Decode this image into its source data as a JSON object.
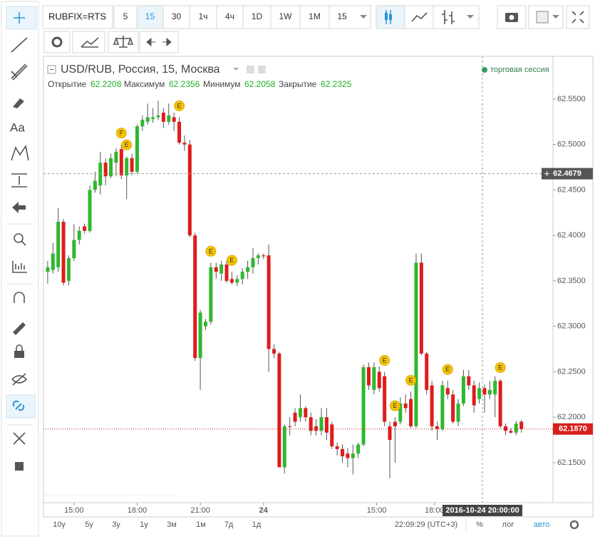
{
  "toolbar": {
    "symbol": "RUBFIX=RTS",
    "intervals": [
      "5",
      "15",
      "30",
      "1ч",
      "4ч",
      "1D",
      "1W",
      "1M"
    ],
    "selected_interval": 1,
    "interval_select": "15",
    "text_tool": "Aa"
  },
  "legend": {
    "title": "USD/RUB, Россия, 15, Москва",
    "session": "торговая сессия",
    "fields": [
      {
        "label": "Открытие",
        "value": 62.2208
      },
      {
        "label": "Максимум",
        "value": 62.2356
      },
      {
        "label": "Минимум",
        "value": 62.2058
      },
      {
        "label": "Закрытие",
        "value": 62.2325
      }
    ]
  },
  "chart_data": {
    "type": "candlestick",
    "up_color": "#2eb82e",
    "down_color": "#e01b1b",
    "open": [
      62.36,
      62.362,
      62.365,
      62.415,
      62.35,
      62.375,
      62.395,
      62.41,
      62.405,
      62.45,
      62.455,
      62.48,
      62.465,
      62.48,
      62.495,
      62.466,
      62.485,
      62.47,
      62.52,
      62.525,
      62.528,
      62.53,
      62.535,
      62.525,
      62.53,
      62.525,
      62.502,
      62.5,
      62.4,
      62.265,
      62.3,
      62.305,
      62.365,
      62.358,
      62.368,
      62.352,
      62.348,
      62.352,
      62.36,
      62.365,
      62.375,
      62.378,
      62.378,
      62.275,
      62.27,
      62.145,
      62.19,
      62.205,
      62.2,
      62.21,
      62.2,
      62.19,
      62.185,
      62.2,
      62.192,
      62.168,
      62.165,
      62.16,
      62.155,
      62.16,
      62.17,
      62.255,
      62.23,
      62.25,
      62.245,
      62.19,
      62.195,
      62.195,
      62.215,
      62.22,
      62.19,
      62.37,
      62.27,
      62.235,
      62.19,
      62.187,
      62.232,
      62.225,
      62.195,
      62.215,
      62.245,
      62.235,
      62.22,
      62.232,
      62.225,
      62.225,
      62.24,
      62.19,
      62.185,
      62.183,
      62.195
    ],
    "high": [
      62.372,
      62.392,
      62.43,
      62.418,
      62.378,
      62.412,
      62.41,
      62.413,
      62.455,
      62.47,
      62.492,
      62.485,
      62.49,
      62.496,
      62.5,
      62.487,
      62.49,
      62.522,
      62.532,
      62.545,
      62.54,
      62.548,
      62.54,
      62.545,
      62.535,
      62.53,
      62.51,
      62.505,
      62.403,
      62.318,
      62.308,
      62.37,
      62.37,
      62.372,
      62.372,
      62.36,
      62.356,
      62.364,
      62.372,
      62.386,
      62.38,
      62.38,
      62.39,
      62.28,
      62.272,
      62.192,
      62.2,
      62.21,
      62.225,
      62.212,
      62.205,
      62.198,
      62.21,
      62.21,
      62.195,
      62.172,
      62.17,
      62.166,
      62.17,
      62.172,
      62.258,
      62.26,
      62.26,
      62.256,
      62.25,
      62.195,
      62.2,
      62.222,
      62.225,
      62.228,
      62.38,
      62.38,
      62.272,
      62.24,
      62.195,
      62.24,
      62.24,
      62.23,
      62.22,
      62.252,
      62.252,
      62.24,
      62.238,
      62.236,
      62.24,
      62.245,
      62.242,
      62.193,
      62.188,
      62.196,
      62.197
    ],
    "low": [
      62.347,
      62.358,
      62.36,
      62.345,
      62.345,
      62.372,
      62.39,
      62.402,
      62.403,
      62.447,
      62.445,
      62.455,
      62.463,
      62.465,
      62.462,
      62.44,
      62.466,
      62.468,
      62.515,
      62.522,
      62.524,
      62.527,
      62.518,
      62.522,
      62.515,
      62.5,
      62.493,
      62.398,
      62.262,
      62.23,
      62.296,
      62.302,
      62.352,
      62.35,
      62.348,
      62.346,
      62.344,
      62.346,
      62.352,
      62.358,
      62.368,
      62.374,
      62.25,
      62.265,
      62.145,
      62.138,
      62.18,
      62.19,
      62.195,
      62.195,
      62.18,
      62.18,
      62.18,
      62.175,
      62.165,
      62.158,
      62.15,
      62.145,
      62.137,
      62.155,
      62.168,
      62.23,
      62.225,
      62.228,
      62.19,
      62.133,
      62.15,
      62.192,
      62.205,
      62.188,
      62.188,
      62.268,
      62.225,
      62.185,
      62.175,
      62.185,
      62.22,
      62.193,
      62.19,
      62.212,
      62.23,
      62.205,
      62.215,
      62.205,
      62.22,
      62.2,
      62.188,
      62.18,
      62.182,
      62.18,
      62.183
    ],
    "close": [
      62.365,
      62.38,
      62.415,
      62.348,
      62.375,
      62.395,
      62.405,
      62.405,
      62.45,
      62.46,
      62.48,
      62.465,
      62.485,
      62.492,
      62.466,
      62.485,
      62.47,
      62.52,
      62.527,
      62.53,
      62.53,
      62.532,
      62.525,
      62.532,
      62.525,
      62.502,
      62.5,
      62.4,
      62.265,
      62.315,
      62.305,
      62.365,
      62.36,
      62.368,
      62.35,
      62.348,
      62.352,
      62.36,
      62.365,
      62.375,
      62.378,
      62.377,
      62.275,
      62.27,
      62.145,
      62.19,
      62.19,
      62.195,
      62.21,
      62.2,
      62.185,
      62.185,
      62.2,
      62.183,
      62.168,
      62.165,
      62.157,
      62.155,
      62.16,
      62.17,
      62.255,
      62.235,
      62.255,
      62.232,
      62.195,
      62.175,
      62.19,
      62.215,
      62.21,
      62.19,
      62.37,
      62.27,
      62.23,
      62.19,
      62.187,
      62.235,
      62.225,
      62.195,
      62.215,
      62.245,
      62.235,
      62.213,
      62.232,
      62.225,
      62.23,
      62.24,
      62.19,
      62.185,
      62.183,
      62.193,
      62.187
    ],
    "xlim": [
      -0.8,
      96
    ],
    "ylim": [
      62.106,
      62.597
    ],
    "yticks": [
      {
        "value": 62.15,
        "label": "62.1500"
      },
      {
        "value": 62.2,
        "label": "62.2000"
      },
      {
        "value": 62.25,
        "label": "62.2500"
      },
      {
        "value": 62.3,
        "label": "62.3000"
      },
      {
        "value": 62.35,
        "label": "62.3500"
      },
      {
        "value": 62.4,
        "label": "62.4000"
      },
      {
        "value": 62.45,
        "label": "62.4500"
      },
      {
        "value": 62.5,
        "label": "62.5000"
      },
      {
        "value": 62.55,
        "label": "62.5500"
      }
    ],
    "xticks": [
      {
        "value": 5,
        "label": "15:00"
      },
      {
        "value": 17,
        "label": "18:00"
      },
      {
        "value": 29,
        "label": "21:00"
      },
      {
        "value": 41,
        "label": "24"
      },
      {
        "value": 62.5,
        "label": "15:00"
      },
      {
        "value": 73.5,
        "label": "18:00"
      }
    ],
    "events": [
      {
        "label": "F",
        "index": 14
      },
      {
        "label": "E",
        "index": 15
      },
      {
        "label": "E",
        "index": 25
      },
      {
        "label": "E",
        "index": 31
      },
      {
        "label": "E",
        "index": 35
      },
      {
        "label": "E",
        "index": 64
      },
      {
        "label": "E",
        "index": 66
      },
      {
        "label": "E",
        "index": 69
      },
      {
        "label": "E",
        "index": 76
      },
      {
        "label": "E",
        "index": 86
      }
    ],
    "crosshair_price": 62.4679,
    "crosshair_time": {
      "value": 82.6,
      "label": "2016-10-24 20:00:00"
    },
    "last_price": {
      "value": 62.187,
      "label": "62.1870"
    }
  },
  "bottom_bar": {
    "ranges": [
      "10y",
      "5y",
      "3y",
      "1y",
      "3м",
      "1м",
      "7д",
      "1д"
    ],
    "clock": "22:09:29 (UTC+3)",
    "percent": "%",
    "log": "лог",
    "auto": "авто"
  }
}
